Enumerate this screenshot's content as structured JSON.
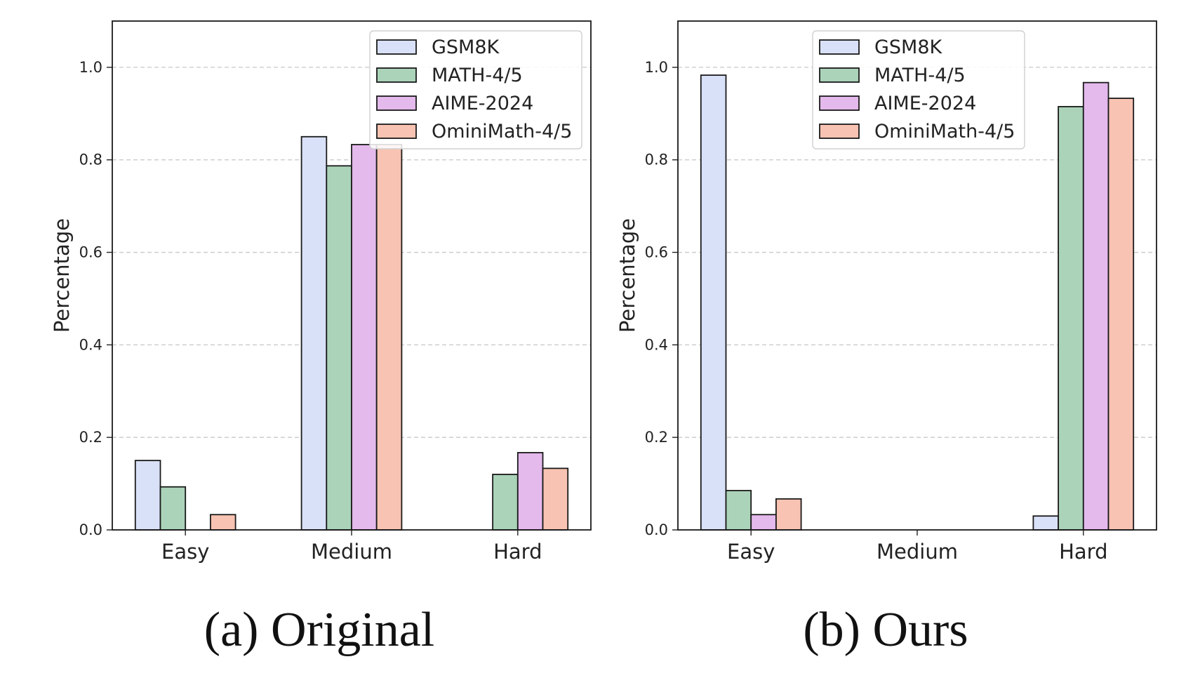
{
  "legend": {
    "series_colors": [
      "#d9e1f8",
      "#abd3b9",
      "#e4b9ec",
      "#f8c3b2"
    ]
  },
  "chart_data": [
    {
      "type": "bar",
      "caption": "(a) Original",
      "ylabel": "Percentage",
      "ylim": [
        0,
        1.1
      ],
      "yticks": [
        "0.0",
        "0.2",
        "0.4",
        "0.6",
        "0.8",
        "1.0"
      ],
      "grid": "horizontal dashed",
      "legend_position": "top-right",
      "categories": [
        "Easy",
        "Medium",
        "Hard"
      ],
      "series": [
        {
          "name": "GSM8K",
          "values": [
            0.15,
            0.85,
            0.0
          ]
        },
        {
          "name": "MATH-4/5",
          "values": [
            0.093,
            0.787,
            0.12
          ]
        },
        {
          "name": "AIME-2024",
          "values": [
            0.0,
            0.833,
            0.167
          ]
        },
        {
          "name": "OminiMath-4/5",
          "values": [
            0.033,
            0.833,
            0.133
          ]
        }
      ]
    },
    {
      "type": "bar",
      "caption": "(b) Ours",
      "ylabel": "Percentage",
      "ylim": [
        0,
        1.1
      ],
      "yticks": [
        "0.0",
        "0.2",
        "0.4",
        "0.6",
        "0.8",
        "1.0"
      ],
      "grid": "horizontal dashed",
      "legend_position": "top-left",
      "categories": [
        "Easy",
        "Medium",
        "Hard"
      ],
      "series": [
        {
          "name": "GSM8K",
          "values": [
            0.983,
            0.0,
            0.03
          ]
        },
        {
          "name": "MATH-4/5",
          "values": [
            0.085,
            0.0,
            0.915
          ]
        },
        {
          "name": "AIME-2024",
          "values": [
            0.033,
            0.0,
            0.967
          ]
        },
        {
          "name": "OminiMath-4/5",
          "values": [
            0.067,
            0.0,
            0.933
          ]
        }
      ]
    }
  ]
}
